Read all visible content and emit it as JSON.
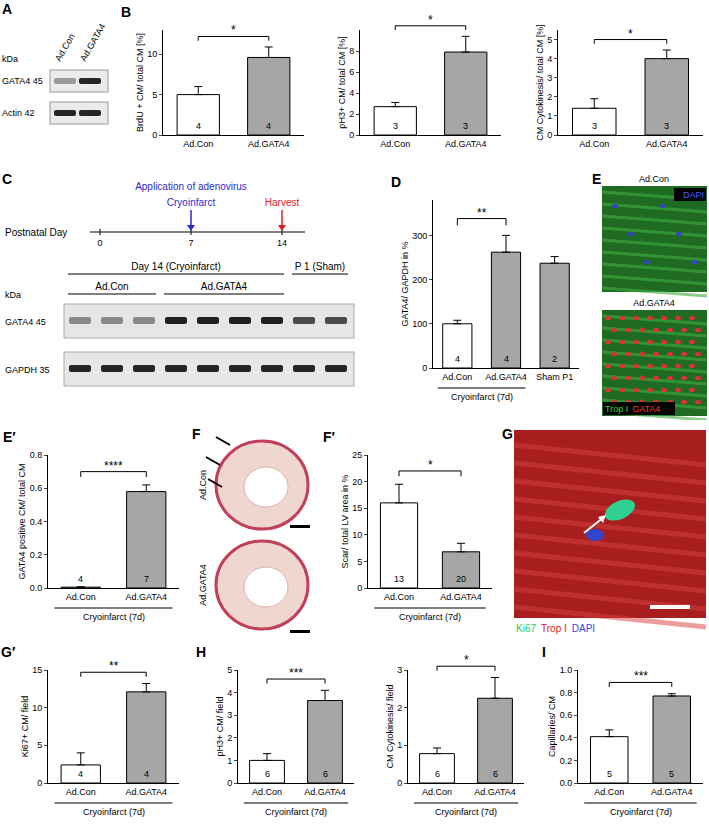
{
  "chart_data": [
    {
      "type": "bar",
      "title": "B",
      "categories": [
        "Ad.Con",
        "Ad.GATA4"
      ],
      "values": [
        5.0,
        9.6
      ],
      "errors": [
        1.0,
        1.3
      ],
      "n": [
        4,
        4
      ],
      "colors": [
        "#ffffff",
        "#a6a6a6"
      ],
      "y_label": "BrdU + CM/ total CM [%]",
      "ylim": [
        0,
        13
      ],
      "yticks": [
        0,
        5,
        10
      ],
      "grid": false,
      "significance": {
        "between": [
          "Ad.Con",
          "Ad.GATA4"
        ],
        "label": "*"
      }
    },
    {
      "type": "bar",
      "categories": [
        "Ad.Con",
        "Ad.GATA4"
      ],
      "values": [
        2.7,
        7.9
      ],
      "errors": [
        0.4,
        1.5
      ],
      "n": [
        3,
        3
      ],
      "colors": [
        "#ffffff",
        "#a6a6a6"
      ],
      "y_label": "pH3+ CM/ total CM [%]",
      "ylim": [
        0,
        10
      ],
      "yticks": [
        0,
        2,
        4,
        6,
        8
      ],
      "grid": false,
      "significance": {
        "between": [
          "Ad.Con",
          "Ad.GATA4"
        ],
        "label": "*"
      }
    },
    {
      "type": "bar",
      "categories": [
        "Ad.Con",
        "Ad.GATA4"
      ],
      "values": [
        1.4,
        4.0
      ],
      "errors": [
        0.5,
        0.45
      ],
      "n": [
        3,
        3
      ],
      "colors": [
        "#ffffff",
        "#a6a6a6"
      ],
      "y_label": "CM Cytokinesis/ total CM [%]",
      "ylim": [
        0,
        5.5
      ],
      "yticks": [
        0,
        1,
        2,
        3,
        4,
        5
      ],
      "grid": false,
      "significance": {
        "between": [
          "Ad.Con",
          "Ad.GATA4"
        ],
        "label": "*"
      }
    },
    {
      "type": "bar",
      "title": "D",
      "categories": [
        "Ad.Con",
        "Ad.GATA4",
        "Sham P1"
      ],
      "values": [
        100,
        262,
        237
      ],
      "errors": [
        8,
        38,
        15
      ],
      "n": [
        4,
        4,
        2
      ],
      "colors": [
        "#ffffff",
        "#a6a6a6",
        "#a6a6a6"
      ],
      "y_label": "GATA4/ GAPDH in %",
      "ylim": [
        0,
        380
      ],
      "yticks": [
        0,
        100,
        200,
        300
      ],
      "grid": false,
      "significance": {
        "between": [
          "Ad.Con",
          "Ad.GATA4"
        ],
        "label": "**"
      },
      "group": {
        "label": "Cryoinfarct (7d)",
        "members": [
          "Ad.Con",
          "Ad.GATA4"
        ]
      }
    },
    {
      "type": "bar",
      "title": "E′",
      "categories": [
        "Ad.Con",
        "Ad.GATA4"
      ],
      "values": [
        0.005,
        0.58
      ],
      "errors": [
        0.002,
        0.04
      ],
      "n": [
        4,
        7
      ],
      "colors": [
        "#ffffff",
        "#a6a6a6"
      ],
      "y_label": "GATA4 positive CM/ total CM",
      "ylim": [
        0,
        0.8
      ],
      "yticks": [
        {
          "value": 0,
          "label": "0.0"
        },
        0.2,
        0.4,
        0.6,
        0.8
      ],
      "grid": false,
      "significance": {
        "between": [
          "Ad.Con",
          "Ad.GATA4"
        ],
        "label": "****"
      },
      "group": {
        "label": "Cryoinfarct (7d)",
        "members": [
          "Ad.Con",
          "Ad.GATA4"
        ]
      }
    },
    {
      "type": "bar",
      "title": "F′",
      "categories": [
        "Ad.Con",
        "Ad.GATA4"
      ],
      "values": [
        16,
        6.8
      ],
      "errors": [
        3.5,
        1.6
      ],
      "n": [
        13,
        20
      ],
      "colors": [
        "#ffffff",
        "#a6a6a6"
      ],
      "y_label": "Scar/ total LV area in %",
      "ylim": [
        0,
        25
      ],
      "yticks": [
        0,
        5,
        10,
        15,
        20,
        25
      ],
      "grid": false,
      "significance": {
        "between": [
          "Ad.Con",
          "Ad.GATA4"
        ],
        "label": "*"
      },
      "group": {
        "label": "Cryoinfarct (7d)",
        "members": [
          "Ad.Con",
          "Ad.GATA4"
        ]
      }
    },
    {
      "type": "bar",
      "title": "G′",
      "categories": [
        "Ad.Con",
        "Ad.GATA4"
      ],
      "values": [
        2.4,
        12.1
      ],
      "errors": [
        1.6,
        1.1
      ],
      "n": [
        4,
        4
      ],
      "colors": [
        "#ffffff",
        "#a6a6a6"
      ],
      "y_label": "Ki67+ CM/ field",
      "ylim": [
        0,
        15
      ],
      "yticks": [
        0,
        5,
        10,
        15
      ],
      "grid": false,
      "significance": {
        "between": [
          "Ad.Con",
          "Ad.GATA4"
        ],
        "label": "**"
      },
      "group": {
        "label": "Cryoinfarct (7d)",
        "members": [
          "Ad.Con",
          "Ad.GATA4"
        ]
      }
    },
    {
      "type": "bar",
      "title": "H",
      "categories": [
        "Ad.Con",
        "Ad.GATA4"
      ],
      "values": [
        1.0,
        3.65
      ],
      "errors": [
        0.3,
        0.45
      ],
      "n": [
        6,
        6
      ],
      "colors": [
        "#ffffff",
        "#a6a6a6"
      ],
      "y_label": "pH3+ CM/ field",
      "ylim": [
        0,
        5
      ],
      "yticks": [
        0,
        1,
        2,
        3,
        4,
        5
      ],
      "grid": false,
      "significance": {
        "between": [
          "Ad.Con",
          "Ad.GATA4"
        ],
        "label": "***"
      },
      "group": {
        "label": "Cryoinfarct (7d)",
        "members": [
          "Ad.Con",
          "Ad.GATA4"
        ]
      }
    },
    {
      "type": "bar",
      "categories": [
        "Ad.Con",
        "Ad.GATA4"
      ],
      "values": [
        0.78,
        2.25
      ],
      "errors": [
        0.15,
        0.55
      ],
      "n": [
        6,
        6
      ],
      "colors": [
        "#ffffff",
        "#a6a6a6"
      ],
      "y_label": "CM Cytokinesis/ field",
      "ylim": [
        0,
        3
      ],
      "yticks": [
        0,
        1,
        2,
        3
      ],
      "grid": false,
      "significance": {
        "between": [
          "Ad.Con",
          "Ad.GATA4"
        ],
        "label": "*"
      },
      "group": {
        "label": "Cryoinfarct (7d)",
        "members": [
          "Ad.Con",
          "Ad.GATA4"
        ]
      }
    },
    {
      "type": "bar",
      "title": "I",
      "categories": [
        "Ad.Con",
        "Ad.GATA4"
      ],
      "values": [
        0.41,
        0.77
      ],
      "errors": [
        0.06,
        0.02
      ],
      "n": [
        5,
        5
      ],
      "colors": [
        "#ffffff",
        "#a6a6a6"
      ],
      "y_label": "Capillaries/ CM",
      "ylim": [
        0,
        1.0
      ],
      "yticks": [
        {
          "value": 0,
          "label": "0.0"
        },
        0.2,
        0.4,
        0.6,
        0.8,
        {
          "value": 1.0,
          "label": "1.0"
        }
      ],
      "grid": false,
      "significance": {
        "between": [
          "Ad.Con",
          "Ad.GATA4"
        ],
        "label": "***"
      },
      "group": {
        "label": "Cryoinfarct (7d)",
        "members": [
          "Ad.Con",
          "Ad.GATA4"
        ]
      }
    }
  ],
  "panels": {
    "A": {
      "label": "A",
      "kda": "kDa",
      "lanes": [
        "Ad.Con",
        "Ad.GATA4"
      ],
      "rows": [
        "GATA4 45",
        "Actin 42"
      ]
    },
    "C": {
      "label": "C",
      "axis_label": "Postnatal Day",
      "days": [
        0,
        7,
        14
      ],
      "events": [
        {
          "day": 7,
          "labels": [
            "Application of adenovirus",
            "Cryoinfarct"
          ],
          "color": "#2a2ad0"
        },
        {
          "day": 14,
          "labels": [
            "Harvest"
          ],
          "color": "#e02020"
        }
      ],
      "blot": {
        "kda": "kDa",
        "header": "Day 14 (Cryoinfarct)",
        "sham_header": "P 1 (Sham)",
        "groups": [
          "Ad.Con",
          "Ad.GATA4"
        ],
        "rows": [
          "GATA4 45",
          "GAPDH 35"
        ]
      }
    },
    "E": {
      "label": "E",
      "images": [
        "Ad.Con",
        "Ad.GATA4"
      ],
      "stains": [
        {
          "name": "DAPI",
          "color": "#4a5cff"
        },
        {
          "name": "Trop I",
          "color": "#33dd33"
        },
        {
          "name": "GATA4",
          "color": "#ff3333"
        }
      ]
    },
    "F": {
      "label": "F",
      "images": [
        "Ad.Con",
        "Ad.GATA4"
      ]
    },
    "G": {
      "label": "G",
      "stains": [
        {
          "name": "Ki67",
          "color": "#22cc66"
        },
        {
          "name": "Trop I",
          "color": "#e02020"
        },
        {
          "name": "DAPI",
          "color": "#3344ee"
        }
      ]
    }
  }
}
